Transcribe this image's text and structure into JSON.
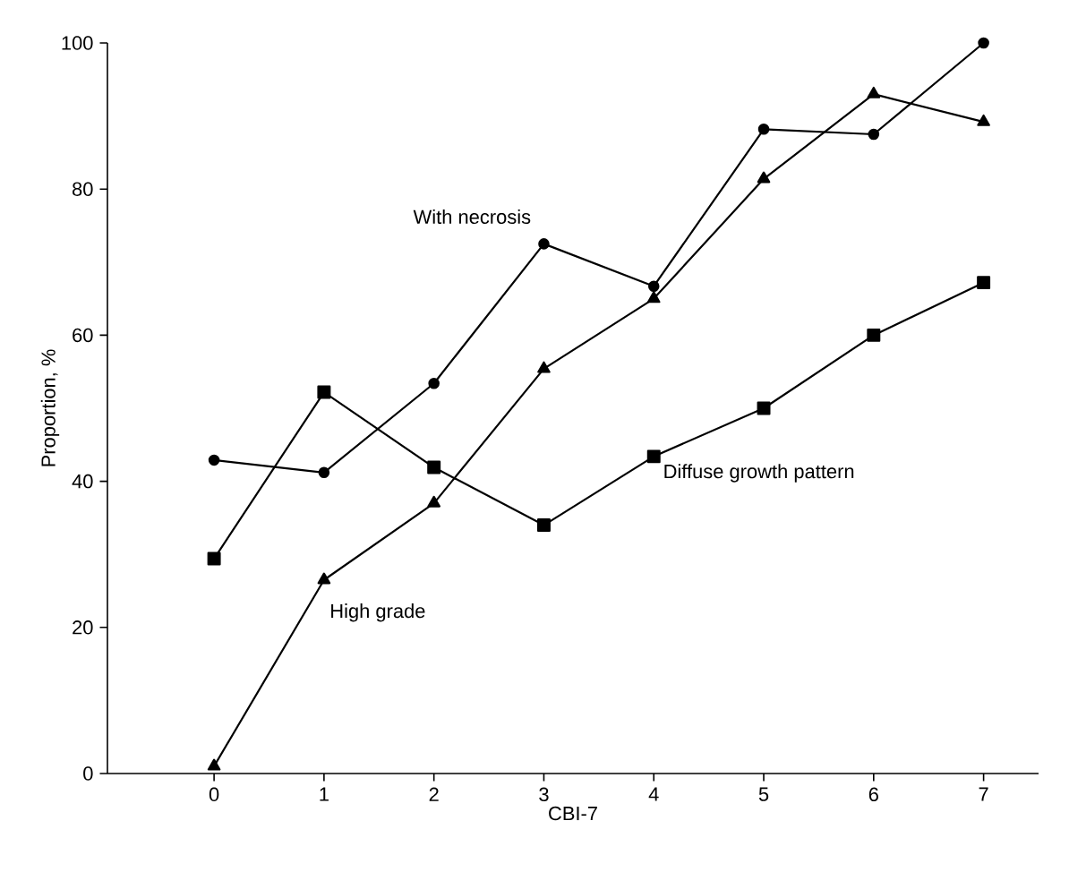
{
  "chart_data": {
    "type": "line",
    "xlabel": "CBI-7",
    "ylabel": "Proportion, %",
    "x": [
      0,
      1,
      2,
      3,
      4,
      5,
      6,
      7
    ],
    "xlim": [
      -0.97,
      7.5
    ],
    "ylim": [
      0,
      100
    ],
    "xticks": [
      0,
      1,
      2,
      3,
      4,
      5,
      6,
      7
    ],
    "yticks": [
      0,
      20,
      40,
      60,
      80,
      100
    ],
    "grid": false,
    "line_style": "solid",
    "series": [
      {
        "name": "With necrosis",
        "color": "#000000",
        "marker": "circle",
        "values": [
          42.9,
          41.2,
          53.4,
          72.5,
          66.7,
          88.2,
          87.5,
          100
        ]
      },
      {
        "name": "Diffuse growth pattern",
        "color": "#000000",
        "marker": "square",
        "values": [
          29.4,
          52.2,
          41.9,
          34,
          43.4,
          50,
          60,
          67.2
        ]
      },
      {
        "name": "High grade",
        "color": "#000000",
        "marker": "triangle",
        "values": [
          1,
          26.5,
          37,
          55.4,
          65,
          81.4,
          93,
          89.2
        ]
      }
    ]
  }
}
